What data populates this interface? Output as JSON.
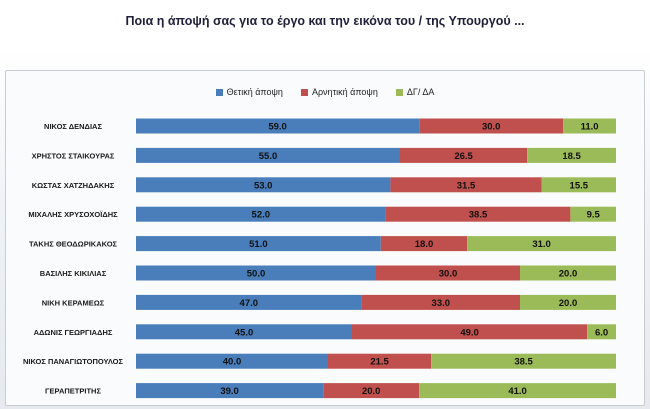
{
  "title": "Ποια η άποψή σας για το έργο και την εικόνα του / της Υπουργού ...",
  "chart_data": {
    "type": "bar",
    "orientation": "horizontal",
    "stacked": true,
    "xlim": [
      0,
      100
    ],
    "legend_position": "top",
    "categories": [
      "ΝΙΚΟΣ ΔΕΝΔΙΑΣ",
      "ΧΡΗΣΤΟΣ ΣΤΑΙΚΟΥΡΑΣ",
      "ΚΩΣΤΑΣ ΧΑΤΖΗΔΑΚΗΣ",
      "ΜΙΧΑΛΗΣ ΧΡΥΣΟΧΟΪΔΗΣ",
      "ΤΑΚΗΣ ΘΕΟΔΩΡΙΚΑΚΟΣ",
      "ΒΑΣΙΛΗΣ ΚΙΚΙΛΙΑΣ",
      "ΝΙΚΗ ΚΕΡΑΜΕΩΣ",
      "ΑΔΩΝΙΣ ΓΕΩΡΓΙΑΔΗΣ",
      "ΝΙΚΟΣ ΠΑΝΑΓΙΩΤΟΠΟΥΛΟΣ",
      "ΓΕΡΑΠΕΤΡΙΤΗΣ"
    ],
    "series": [
      {
        "name": "Θετική άποψη",
        "color": "#4a7ebb",
        "values": [
          59.0,
          55.0,
          53.0,
          52.0,
          51.0,
          50.0,
          47.0,
          45.0,
          40.0,
          39.0
        ],
        "labels": [
          "59.0",
          "55.0",
          "53.0",
          "52.0",
          "51.0",
          "50.0",
          "47.0",
          "45.0",
          "40.0",
          "39.0"
        ]
      },
      {
        "name": "Αρνητική άποψη",
        "color": "#c0504d",
        "values": [
          30.0,
          26.5,
          31.5,
          38.5,
          18.0,
          30.0,
          33.0,
          49.0,
          21.5,
          20.0
        ],
        "labels": [
          "30.0",
          "26.5",
          "31.5",
          "38.5",
          "18.0",
          "30.0",
          "33.0",
          "49.0",
          "21.5",
          "20.0"
        ]
      },
      {
        "name": "ΔΓ/ ΔΑ",
        "color": "#9bbb59",
        "values": [
          11.0,
          18.5,
          15.5,
          9.5,
          31.0,
          20.0,
          20.0,
          6.0,
          38.5,
          41.0
        ],
        "labels": [
          "11.0",
          "18.5",
          "15.5",
          "9.5",
          "31.0",
          "20.0",
          "20.0",
          "6.0",
          "38.5",
          "41.0"
        ]
      }
    ]
  }
}
